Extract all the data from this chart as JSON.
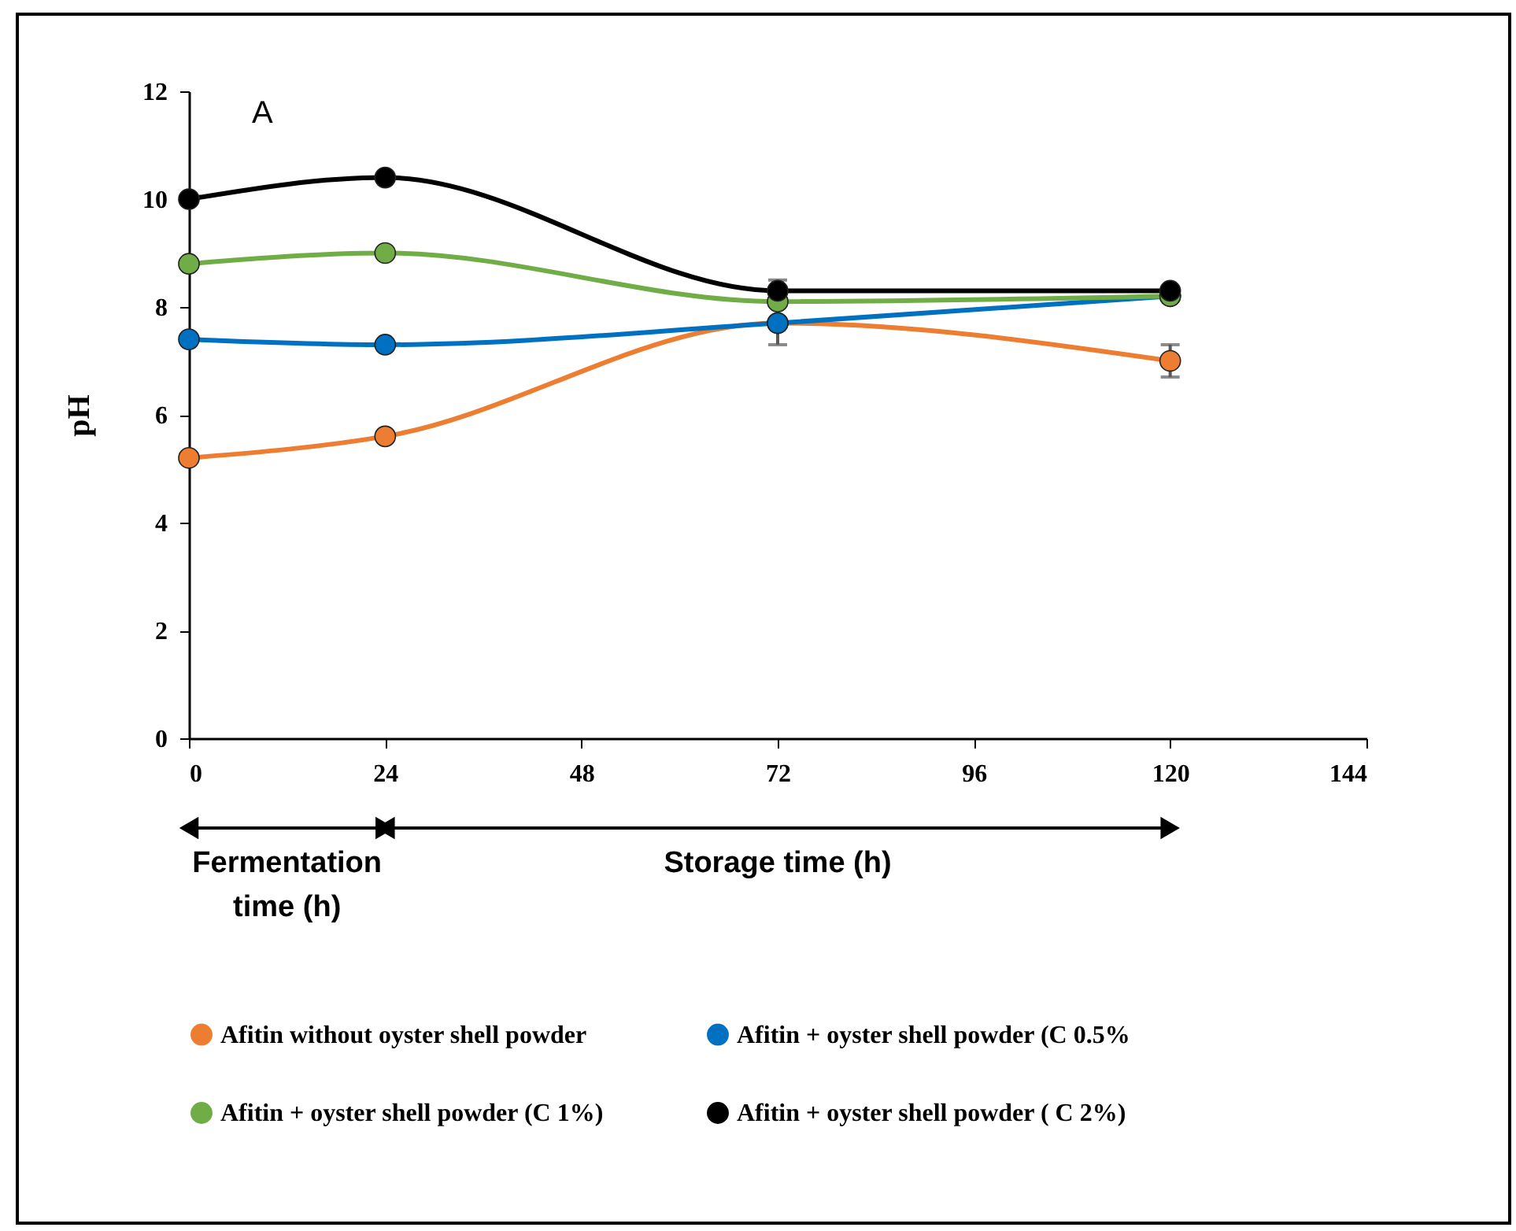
{
  "chart_data": {
    "type": "line",
    "ylabel": "pH",
    "x": [
      0,
      24,
      72,
      120
    ],
    "xlim": [
      0,
      144
    ],
    "xticks": [
      0,
      24,
      48,
      72,
      96,
      120,
      144
    ],
    "ylim": [
      0,
      12
    ],
    "yticks": [
      0,
      2,
      4,
      6,
      8,
      10,
      12
    ],
    "grid": false,
    "legend": "bottom",
    "marker": "circle",
    "line_style": "solid",
    "series": [
      {
        "name": "Afitin without oyster shell powder",
        "color": "#ed7d31",
        "values": [
          5.2,
          5.6,
          7.7,
          7.0
        ],
        "errors": [
          null,
          null,
          null,
          0.3
        ]
      },
      {
        "name": "Afitin + oyster shell powder (C 0.5%",
        "color": "#0070c0",
        "values": [
          7.4,
          7.3,
          7.7,
          8.2
        ],
        "errors": [
          null,
          null,
          0.4,
          null
        ]
      },
      {
        "name": "Afitin + oyster shell powder (C 1%)",
        "color": "#70ad47",
        "values": [
          8.8,
          9.0,
          8.1,
          8.2
        ]
      },
      {
        "name": "Afitin + oyster shell powder ( C 2%)",
        "color": "#000000",
        "values": [
          10.0,
          10.4,
          8.3,
          8.3
        ],
        "errors": [
          null,
          null,
          0.2,
          null
        ]
      }
    ],
    "annotations": [
      "A",
      "Fermentation time (h)",
      "Storage time (h)"
    ]
  }
}
